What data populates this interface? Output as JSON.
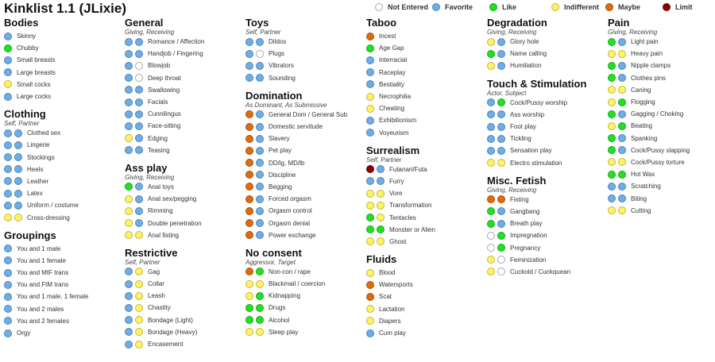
{
  "title": "Kinklist 1.1 (JLixie)",
  "colors": {
    "n": "#ffffff",
    "f": "#6daee9",
    "l": "#22e022",
    "i": "#fff35f",
    "m": "#e06b0c",
    "x": "#8b0000"
  },
  "legend": [
    {
      "key": "n",
      "label": "Not Entered"
    },
    {
      "key": "f",
      "label": "Favorite"
    },
    {
      "key": "l",
      "label": "Like"
    },
    {
      "key": "i",
      "label": "Indifferent"
    },
    {
      "key": "m",
      "label": "Maybe"
    },
    {
      "key": "x",
      "label": "Limit"
    }
  ],
  "columns": [
    [
      {
        "title": "Bodies",
        "subtitle": "",
        "items": [
          [
            "Skinny",
            "f"
          ],
          [
            "Chubby",
            "l"
          ],
          [
            "Small breasts",
            "f"
          ],
          [
            "Large breasts",
            "f"
          ],
          [
            "Small cocks",
            "i"
          ],
          [
            "Large cocks",
            "f"
          ]
        ]
      },
      {
        "title": "Clothing",
        "subtitle": "Self, Partner",
        "items": [
          [
            "Clothed sex",
            "ff"
          ],
          [
            "Lingerie",
            "ff"
          ],
          [
            "Stockings",
            "ff"
          ],
          [
            "Heels",
            "ff"
          ],
          [
            "Leather",
            "ff"
          ],
          [
            "Latex",
            "ff"
          ],
          [
            "Uniform / costume",
            "ff"
          ],
          [
            "Cross-dressing",
            "ii"
          ]
        ]
      },
      {
        "title": "Groupings",
        "subtitle": "",
        "items": [
          [
            "You and 1 male",
            "f"
          ],
          [
            "You and 1 female",
            "f"
          ],
          [
            "You and MtF trans",
            "f"
          ],
          [
            "You and FtM trans",
            "f"
          ],
          [
            "You and 1 male, 1 female",
            "f"
          ],
          [
            "You and 2 males",
            "f"
          ],
          [
            "You and 2 females",
            "f"
          ],
          [
            "Orgy",
            "f"
          ]
        ]
      }
    ],
    [
      {
        "title": "General",
        "subtitle": "Giving, Receiving",
        "items": [
          [
            "Romance / Affection",
            "ff"
          ],
          [
            "Handjob / Fingering",
            "ff"
          ],
          [
            "Blowjob",
            "fn"
          ],
          [
            "Deep throat",
            "fn"
          ],
          [
            "Swallowing",
            "ff"
          ],
          [
            "Facials",
            "ff"
          ],
          [
            "Cunnilingus",
            "ff"
          ],
          [
            "Face-sitting",
            "ff"
          ],
          [
            "Edging",
            "if"
          ],
          [
            "Teasing",
            "ff"
          ]
        ]
      },
      {
        "title": "Ass play",
        "subtitle": "Giving, Receiving",
        "items": [
          [
            "Anal toys",
            "lf"
          ],
          [
            "Anal sex/pegging",
            "if"
          ],
          [
            "Rimming",
            "if"
          ],
          [
            "Double penetration",
            "if"
          ],
          [
            "Anal fisting",
            "ii"
          ]
        ]
      },
      {
        "title": "Restrictive",
        "subtitle": "Self, Partner",
        "items": [
          [
            "Gag",
            "fi"
          ],
          [
            "Collar",
            "fi"
          ],
          [
            "Leash",
            "fi"
          ],
          [
            "Chastity",
            "fi"
          ],
          [
            "Bondage (Light)",
            "fi"
          ],
          [
            "Bondage (Heavy)",
            "fi"
          ],
          [
            "Encasement",
            "fi"
          ]
        ]
      }
    ],
    [
      {
        "title": "Toys",
        "subtitle": "Self, Partner",
        "items": [
          [
            "Dildos",
            "ff"
          ],
          [
            "Plugs",
            "fn"
          ],
          [
            "Vibrators",
            "ff"
          ],
          [
            "Sounding",
            "ff"
          ]
        ]
      },
      {
        "title": "Domination",
        "subtitle": "As Dominant, As Submissive",
        "items": [
          [
            "General Dom / General Sub",
            "mf"
          ],
          [
            "Domestic servitude",
            "mf"
          ],
          [
            "Slavery",
            "mf"
          ],
          [
            "Pet play",
            "mf"
          ],
          [
            "DD/lg, MD/lb",
            "mf"
          ],
          [
            "Discipline",
            "mf"
          ],
          [
            "Begging",
            "mf"
          ],
          [
            "Forced orgasm",
            "mf"
          ],
          [
            "Orgasm control",
            "mf"
          ],
          [
            "Orgasm denial",
            "mf"
          ],
          [
            "Power exchange",
            "mf"
          ]
        ]
      },
      {
        "title": "No consent",
        "subtitle": "Aggressor, Target",
        "items": [
          [
            "Non-con / rape",
            "ml"
          ],
          [
            "Blackmail / coercion",
            "ii"
          ],
          [
            "Kidnapping",
            "il"
          ],
          [
            "Drugs",
            "ll"
          ],
          [
            "Alcohol",
            "ll"
          ],
          [
            "Sleep play",
            "ii"
          ]
        ]
      }
    ],
    [
      {
        "title": "Taboo",
        "subtitle": "",
        "items": [
          [
            "Incest",
            "m"
          ],
          [
            "Age Gap",
            "l"
          ],
          [
            "Interracial",
            "f"
          ],
          [
            "Raceplay",
            "f"
          ],
          [
            "Bestiality",
            "f"
          ],
          [
            "Necrophilia",
            "i"
          ],
          [
            "Cheating",
            "i"
          ],
          [
            "Exhibitionism",
            "f"
          ],
          [
            "Voyeurism",
            "f"
          ]
        ]
      },
      {
        "title": "Surrealism",
        "subtitle": "Self, Partner",
        "items": [
          [
            "Futanari/Futa",
            "xf"
          ],
          [
            "Furry",
            "ff"
          ],
          [
            "Vore",
            "ii"
          ],
          [
            "Transformation",
            "ii"
          ],
          [
            "Tentacles",
            "li"
          ],
          [
            "Monster or Alien",
            "ll"
          ],
          [
            "Ghost",
            "ii"
          ]
        ]
      },
      {
        "title": "Fluids",
        "subtitle": "",
        "items": [
          [
            "Blood",
            "i"
          ],
          [
            "Watersports",
            "m"
          ],
          [
            "Scat",
            "m"
          ],
          [
            "Lactation",
            "i"
          ],
          [
            "Diapers",
            "i"
          ],
          [
            "Cum play",
            "f"
          ]
        ]
      }
    ],
    [
      {
        "title": "Degradation",
        "subtitle": "Giving, Receiving",
        "items": [
          [
            "Glory hole",
            "if"
          ],
          [
            "Name calling",
            "lf"
          ],
          [
            "Humiliation",
            "if"
          ]
        ]
      },
      {
        "title": "Touch & Stimulation",
        "subtitle": "Actor, Subject",
        "items": [
          [
            "Cock/Pussy worship",
            "fl"
          ],
          [
            "Ass worship",
            "ff"
          ],
          [
            "Foot play",
            "ff"
          ],
          [
            "Tickling",
            "ff"
          ],
          [
            "Sensation play",
            "ff"
          ],
          [
            "Electro stimulation",
            "ii"
          ]
        ]
      },
      {
        "title": "Misc. Fetish",
        "subtitle": "Giving, Receiving",
        "items": [
          [
            "Fisting",
            "mm"
          ],
          [
            "Gangbang",
            "lf"
          ],
          [
            "Breath play",
            "lf"
          ],
          [
            "Impregnation",
            "nl"
          ],
          [
            "Pregnancy",
            "nl"
          ],
          [
            "Feminization",
            "in"
          ],
          [
            "Cuckold / Cuckquean",
            "in"
          ]
        ]
      }
    ],
    [
      {
        "title": "Pain",
        "subtitle": "Giving, Receiving",
        "items": [
          [
            "Light pain",
            "lf"
          ],
          [
            "Heavy pain",
            "ii"
          ],
          [
            "Nipple clamps",
            "lf"
          ],
          [
            "Clothes pins",
            "lf"
          ],
          [
            "Caning",
            "ii"
          ],
          [
            "Flogging",
            "il"
          ],
          [
            "Gagging / Choking",
            "lf"
          ],
          [
            "Beating",
            "il"
          ],
          [
            "Spanking",
            "lf"
          ],
          [
            "Cock/Pussy slapping",
            "lf"
          ],
          [
            "Cock/Pussy torture",
            "ii"
          ],
          [
            "Hot Wax",
            "ll"
          ],
          [
            "Scratching",
            "ff"
          ],
          [
            "Biting",
            "ff"
          ],
          [
            "Cutting",
            "ii"
          ]
        ]
      }
    ]
  ]
}
